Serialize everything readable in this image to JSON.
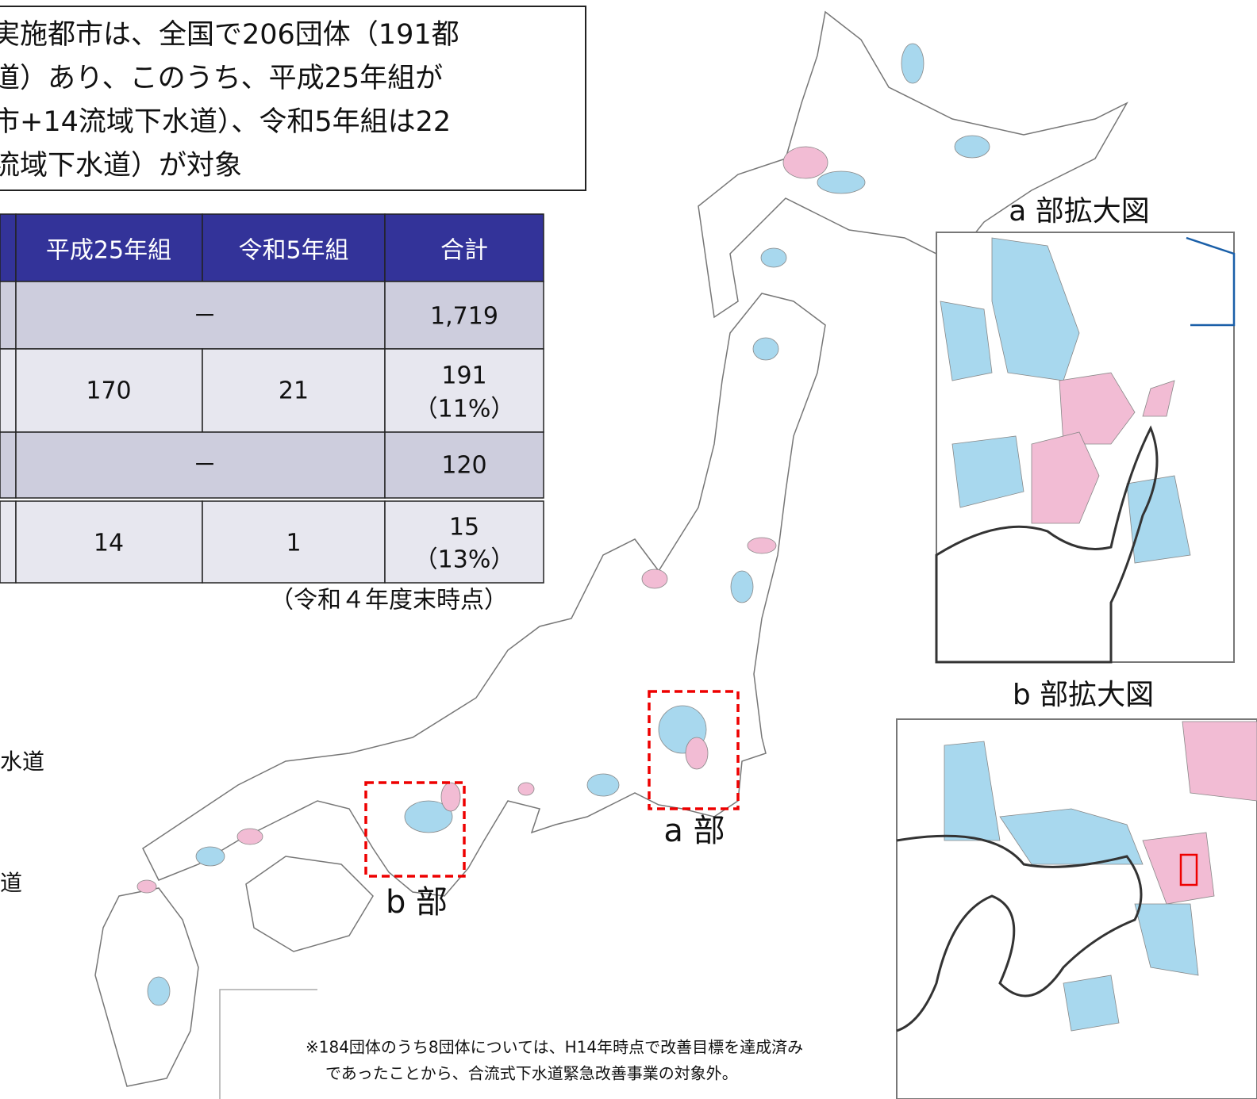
{
  "callout": {
    "lines": [
      "実施都市は、全国で206団体（191都",
      "道）あり、このうち、平成25年組が",
      "市+14流域下水道）、令和5年組は22",
      "流域下水道）が対象"
    ]
  },
  "table": {
    "header": [
      "平成25年組",
      "令和5年組",
      "合計"
    ],
    "rows": [
      {
        "merged": "－",
        "total": "1,719"
      },
      {
        "cells": [
          "170",
          "21"
        ],
        "total": "191",
        "share": "（11%）"
      },
      {
        "merged": "－",
        "total": "120"
      },
      {
        "cells": [
          "14",
          "1"
        ],
        "total": "15",
        "share": "（13%）"
      }
    ],
    "caption": "（令和４年度末時点）"
  },
  "legend": {
    "items": [
      "水道",
      "道"
    ]
  },
  "map": {
    "label_a": "a 部",
    "label_b": "b 部"
  },
  "insets": {
    "a_title": "a 部拡大図",
    "b_title": "b 部拡大図"
  },
  "footnote": {
    "lines": [
      "※184団体のうち8団体については、H14年時点で改善目標を達成済み",
      "であったことから、合流式下水道緊急改善事業の対象外。"
    ]
  }
}
